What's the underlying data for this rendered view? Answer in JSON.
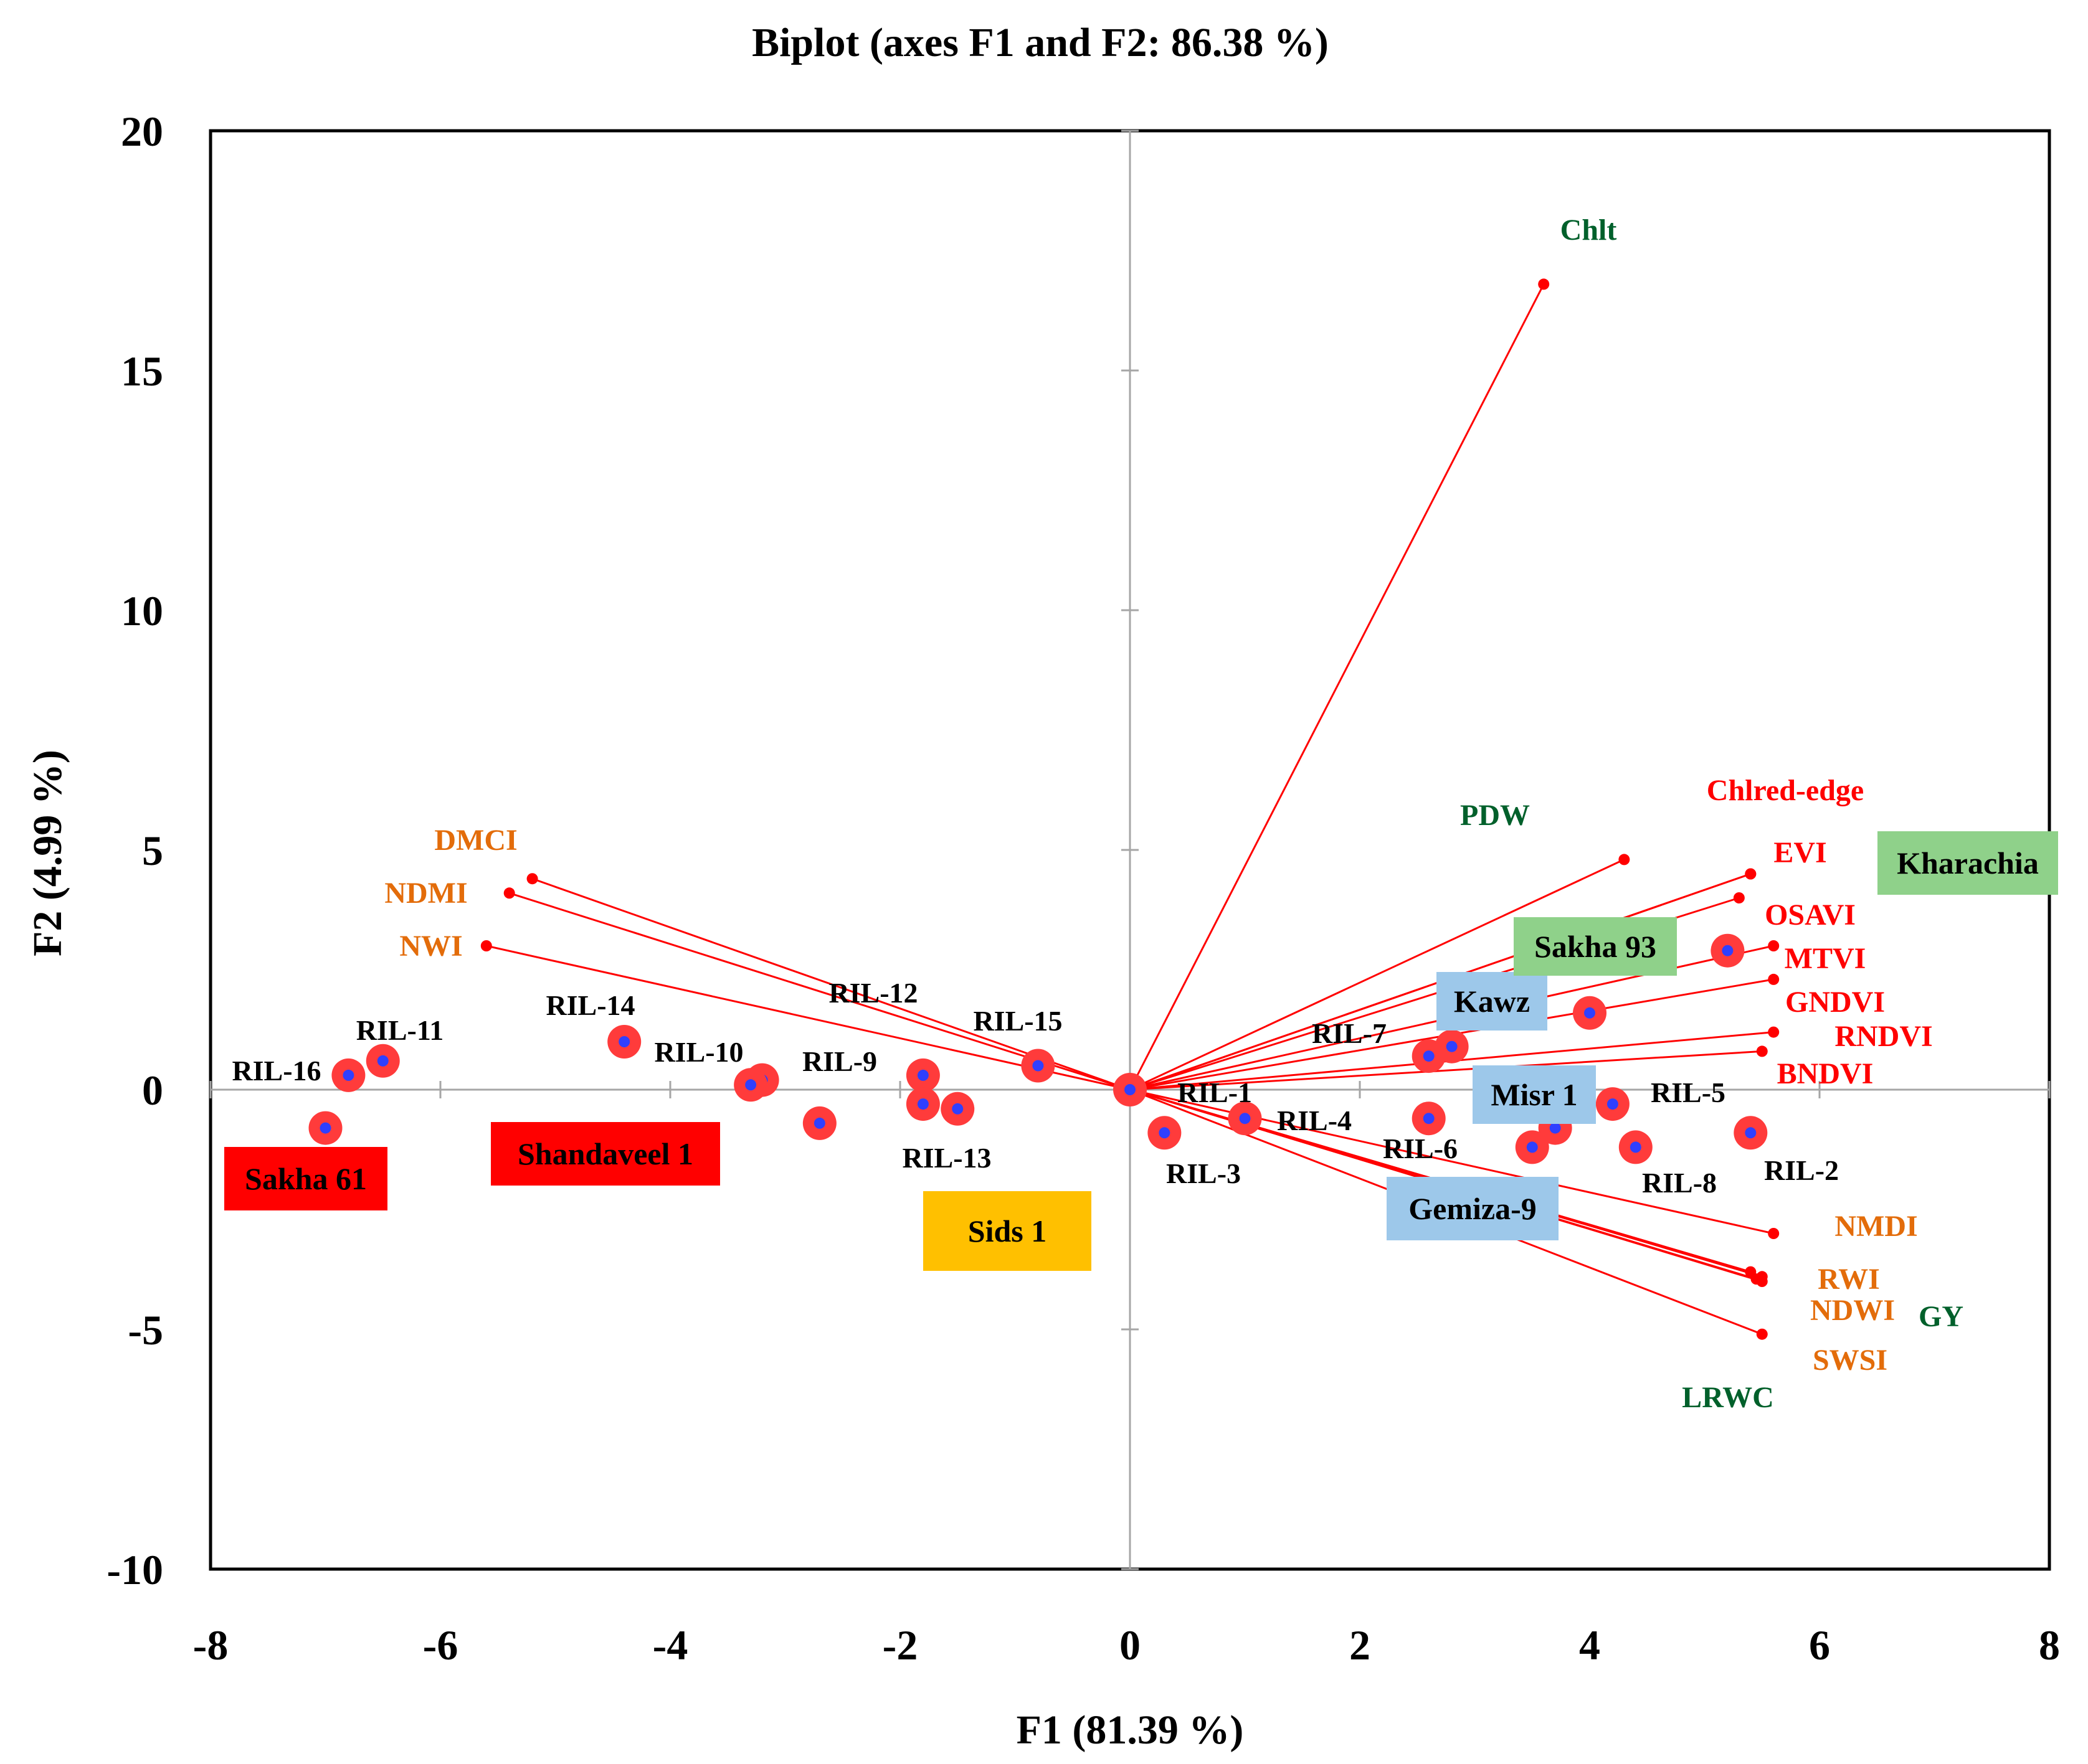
{
  "chart_data": {
    "type": "scatter",
    "subtype": "biplot",
    "title": "Biplot (axes F1 and F2: 86.38 %)",
    "xlabel": "F1 (81.39 %)",
    "ylabel": "F2 (4.99 %)",
    "xlim": [
      -8,
      8
    ],
    "ylim": [
      -10,
      20
    ],
    "x_ticks": [
      "-8",
      "-6",
      "-4",
      "-2",
      "0",
      "2",
      "4",
      "6",
      "8"
    ],
    "y_ticks": [
      "20",
      "15",
      "10",
      "5",
      "0",
      "-5",
      "-10"
    ],
    "colors": {
      "vector": "#ff0000",
      "point_halo": "#ff3b3b",
      "point_core": "#2f3fff",
      "orange_text": "#e36c0a",
      "green_text": "#00602b",
      "red_text": "#ff0000",
      "label_red_box": "#ff0000",
      "label_orange_box": "#ffc000",
      "label_green_box": "#8fd18a",
      "label_blue_box": "#9dc8ea"
    },
    "variables": [
      {
        "name": "Chlt",
        "x": 3.6,
        "y": 16.8,
        "color": "green"
      },
      {
        "name": "PDW",
        "x": 4.3,
        "y": 4.8,
        "color": "green"
      },
      {
        "name": "Chlred-edge",
        "x": 5.4,
        "y": 4.5,
        "color": "red"
      },
      {
        "name": "EVI",
        "x": 5.4,
        "y": 4.5,
        "color": "red"
      },
      {
        "name": "OSAVI",
        "x": 5.3,
        "y": 4.0,
        "color": "red"
      },
      {
        "name": "MTVI",
        "x": 5.6,
        "y": 3.0,
        "color": "red"
      },
      {
        "name": "GNDVI",
        "x": 5.6,
        "y": 2.3,
        "color": "red"
      },
      {
        "name": "RNDVI",
        "x": 5.6,
        "y": 1.2,
        "color": "red"
      },
      {
        "name": "BNDVI",
        "x": 5.5,
        "y": 0.8,
        "color": "red"
      },
      {
        "name": "NMDI",
        "x": 5.6,
        "y": -3.0,
        "color": "orange"
      },
      {
        "name": "RWI",
        "x": 5.4,
        "y": -3.8,
        "color": "orange"
      },
      {
        "name": "NDWI",
        "x": 5.5,
        "y": -4.0,
        "color": "orange"
      },
      {
        "name": "GY",
        "x": 5.5,
        "y": -3.9,
        "color": "green"
      },
      {
        "name": "SWSI",
        "x": 5.5,
        "y": -5.1,
        "color": "orange"
      },
      {
        "name": "LRWC",
        "x": 5.45,
        "y": -3.95,
        "color": "green"
      },
      {
        "name": "DMCI",
        "x": -5.2,
        "y": 4.4,
        "color": "orange"
      },
      {
        "name": "NDMI",
        "x": -5.4,
        "y": 4.1,
        "color": "orange"
      },
      {
        "name": "NWI",
        "x": -5.6,
        "y": 3.0,
        "color": "orange"
      }
    ],
    "observations": [
      {
        "name": "RIL-1",
        "x": 0.0,
        "y": 0.0
      },
      {
        "name": "RIL-2",
        "x": 5.4,
        "y": -0.9
      },
      {
        "name": "RIL-3",
        "x": 0.3,
        "y": -0.9
      },
      {
        "name": "RIL-4",
        "x": 1.0,
        "y": -0.6
      },
      {
        "name": "RIL-5",
        "x": 4.2,
        "y": -0.3
      },
      {
        "name": "RIL-6",
        "x": 2.6,
        "y": -0.6
      },
      {
        "name": "RIL-7",
        "x": 2.6,
        "y": 0.7
      },
      {
        "name": "RIL-8",
        "x": 4.4,
        "y": -1.2
      },
      {
        "name": "RIL-9",
        "x": -3.2,
        "y": 0.2
      },
      {
        "name": "RIL-10",
        "x": -3.3,
        "y": 0.1
      },
      {
        "name": "RIL-11",
        "x": -6.5,
        "y": 0.6
      },
      {
        "name": "RIL-12",
        "x": -1.8,
        "y": 0.3
      },
      {
        "name": "RIL-13",
        "x": -1.8,
        "y": -0.3
      },
      {
        "name": "RIL-14",
        "x": -4.4,
        "y": 1.0
      },
      {
        "name": "RIL-15",
        "x": -0.8,
        "y": 0.5
      },
      {
        "name": "RIL-16",
        "x": -6.8,
        "y": 0.3
      },
      {
        "name": "Sakha 61",
        "x": -7.0,
        "y": -0.8
      },
      {
        "name": "Shandaveel 1",
        "x": -2.7,
        "y": -0.7
      },
      {
        "name": "Sids 1",
        "x": -1.5,
        "y": -0.4
      },
      {
        "name": "Kawz",
        "x": 2.8,
        "y": 0.9
      },
      {
        "name": "Misr 1",
        "x": 3.7,
        "y": -0.8
      },
      {
        "name": "Gemiza-9",
        "x": 3.5,
        "y": -1.2
      },
      {
        "name": "Sakha 93",
        "x": 4.0,
        "y": 1.6
      },
      {
        "name": "Kharachia",
        "x": 5.2,
        "y": 2.9
      }
    ],
    "groups": [
      {
        "label": "Sakha 61",
        "box": "red"
      },
      {
        "label": "Shandaveel 1",
        "box": "red"
      },
      {
        "label": "Sids 1",
        "box": "orange"
      },
      {
        "label": "Kawz",
        "box": "blue"
      },
      {
        "label": "Misr 1",
        "box": "blue"
      },
      {
        "label": "Gemiza-9",
        "box": "blue"
      },
      {
        "label": "Sakha 93",
        "box": "green"
      },
      {
        "label": "Kharachia",
        "box": "green"
      }
    ]
  }
}
